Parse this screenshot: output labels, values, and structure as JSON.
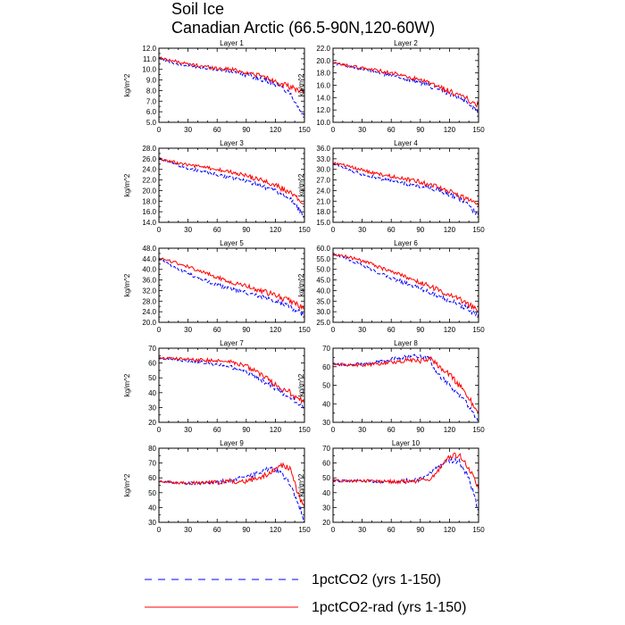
{
  "title": "Soil Ice",
  "subtitle": "Canadian Arctic (66.5-90N,120-60W)",
  "legend": [
    {
      "label": "1pctCO2 (yrs 1-150)",
      "color": "#0000ff",
      "dash": true
    },
    {
      "label": "1pctCO2-rad (yrs 1-150)",
      "color": "#ff0000",
      "dash": false
    }
  ],
  "colors": {
    "series_1pctCO2": "#0000ff",
    "series_1pctCO2_rad": "#ff0000"
  },
  "chart_data": [
    {
      "type": "line",
      "title": "Layer 1",
      "ylabel": "kg/m^2",
      "xlim": [
        0,
        150
      ],
      "ylim": [
        5,
        12
      ],
      "xticks": [
        "0",
        "30",
        "60",
        "90",
        "120",
        "150"
      ],
      "yticks": [
        "5.0",
        "6.0",
        "7.0",
        "8.0",
        "9.0",
        "10.0",
        "11.0",
        "12.0"
      ],
      "series": [
        {
          "name": "1pctCO2 (yrs 1-150)",
          "x": [
            0,
            15,
            30,
            45,
            60,
            75,
            90,
            105,
            120,
            135,
            150
          ],
          "values": [
            11.1,
            10.6,
            10.3,
            10.2,
            10.0,
            9.8,
            9.5,
            9.1,
            8.6,
            7.8,
            5.5
          ]
        },
        {
          "name": "1pctCO2-rad (yrs 1-150)",
          "x": [
            0,
            15,
            30,
            45,
            60,
            75,
            90,
            105,
            120,
            135,
            150
          ],
          "values": [
            11.1,
            10.8,
            10.5,
            10.3,
            10.1,
            10.0,
            9.7,
            9.4,
            8.9,
            8.3,
            7.9
          ]
        }
      ]
    },
    {
      "type": "line",
      "title": "Layer 2",
      "ylabel": "kg/m^2",
      "xlim": [
        0,
        150
      ],
      "ylim": [
        10,
        22
      ],
      "xticks": [
        "0",
        "30",
        "60",
        "90",
        "120",
        "150"
      ],
      "yticks": [
        "10.0",
        "12.0",
        "14.0",
        "16.0",
        "18.0",
        "20.0",
        "22.0"
      ],
      "series": [
        {
          "name": "1pctCO2 (yrs 1-150)",
          "x": [
            0,
            15,
            30,
            45,
            60,
            75,
            90,
            105,
            120,
            135,
            150
          ],
          "values": [
            19.6,
            19.1,
            18.6,
            18.1,
            17.6,
            17.0,
            16.4,
            15.6,
            14.6,
            13.6,
            11.8
          ]
        },
        {
          "name": "1pctCO2-rad (yrs 1-150)",
          "x": [
            0,
            15,
            30,
            45,
            60,
            75,
            90,
            105,
            120,
            135,
            150
          ],
          "values": [
            19.6,
            19.2,
            18.8,
            18.4,
            18.0,
            17.4,
            16.8,
            16.0,
            15.0,
            14.0,
            12.8
          ]
        }
      ]
    },
    {
      "type": "line",
      "title": "Layer 3",
      "ylabel": "kg/m^2",
      "xlim": [
        0,
        150
      ],
      "ylim": [
        14,
        28
      ],
      "xticks": [
        "0",
        "30",
        "60",
        "90",
        "120",
        "150"
      ],
      "yticks": [
        "14.0",
        "16.0",
        "18.0",
        "20.0",
        "22.0",
        "24.0",
        "26.0",
        "28.0"
      ],
      "series": [
        {
          "name": "1pctCO2 (yrs 1-150)",
          "x": [
            0,
            15,
            30,
            45,
            60,
            75,
            90,
            105,
            120,
            135,
            150
          ],
          "values": [
            26.0,
            25.0,
            24.2,
            23.6,
            23.0,
            22.4,
            21.8,
            21.0,
            20.0,
            18.4,
            15.2
          ]
        },
        {
          "name": "1pctCO2-rad (yrs 1-150)",
          "x": [
            0,
            15,
            30,
            45,
            60,
            75,
            90,
            105,
            120,
            135,
            150
          ],
          "values": [
            26.0,
            25.4,
            24.8,
            24.4,
            24.0,
            23.4,
            22.8,
            22.0,
            21.0,
            19.6,
            17.6
          ]
        }
      ]
    },
    {
      "type": "line",
      "title": "Layer 4",
      "ylabel": "kg/m^2",
      "xlim": [
        0,
        150
      ],
      "ylim": [
        15,
        36
      ],
      "xticks": [
        "0",
        "30",
        "60",
        "90",
        "120",
        "150"
      ],
      "yticks": [
        "15.0",
        "18.0",
        "21.0",
        "24.0",
        "27.0",
        "30.0",
        "33.0",
        "36.0"
      ],
      "series": [
        {
          "name": "1pctCO2 (yrs 1-150)",
          "x": [
            0,
            15,
            30,
            45,
            60,
            75,
            90,
            105,
            120,
            135,
            150
          ],
          "values": [
            31.8,
            30.0,
            28.6,
            27.6,
            26.8,
            26.0,
            25.2,
            24.4,
            23.0,
            21.0,
            17.0
          ]
        },
        {
          "name": "1pctCO2-rad (yrs 1-150)",
          "x": [
            0,
            15,
            30,
            45,
            60,
            75,
            90,
            105,
            120,
            135,
            150
          ],
          "values": [
            31.8,
            31.0,
            29.8,
            28.8,
            28.0,
            27.2,
            26.4,
            25.4,
            23.8,
            22.0,
            19.6
          ]
        }
      ]
    },
    {
      "type": "line",
      "title": "Layer 5",
      "ylabel": "kg/m^2",
      "xlim": [
        0,
        150
      ],
      "ylim": [
        20,
        48
      ],
      "xticks": [
        "0",
        "30",
        "60",
        "90",
        "120",
        "150"
      ],
      "yticks": [
        "20.0",
        "24.0",
        "28.0",
        "32.0",
        "36.0",
        "40.0",
        "44.0",
        "48.0"
      ],
      "series": [
        {
          "name": "1pctCO2 (yrs 1-150)",
          "x": [
            0,
            15,
            30,
            45,
            60,
            75,
            90,
            105,
            120,
            135,
            150
          ],
          "values": [
            44.0,
            41.0,
            38.4,
            36.2,
            34.2,
            32.6,
            31.0,
            29.6,
            28.0,
            26.0,
            22.4
          ]
        },
        {
          "name": "1pctCO2-rad (yrs 1-150)",
          "x": [
            0,
            15,
            30,
            45,
            60,
            75,
            90,
            105,
            120,
            135,
            150
          ],
          "values": [
            44.2,
            42.8,
            41.0,
            39.0,
            37.0,
            35.2,
            33.6,
            32.0,
            30.2,
            28.0,
            25.0
          ]
        }
      ]
    },
    {
      "type": "line",
      "title": "Layer 6",
      "ylabel": "kg/m^2",
      "xlim": [
        0,
        150
      ],
      "ylim": [
        25,
        60
      ],
      "xticks": [
        "0",
        "30",
        "60",
        "90",
        "120",
        "150"
      ],
      "yticks": [
        "25.0",
        "30.0",
        "35.0",
        "40.0",
        "45.0",
        "50.0",
        "55.0",
        "60.0"
      ],
      "series": [
        {
          "name": "1pctCO2 (yrs 1-150)",
          "x": [
            0,
            15,
            30,
            45,
            60,
            75,
            90,
            105,
            120,
            135,
            150
          ],
          "values": [
            57.0,
            55.0,
            52.0,
            49.0,
            46.0,
            43.5,
            41.0,
            38.0,
            35.5,
            32.5,
            27.5
          ]
        },
        {
          "name": "1pctCO2-rad (yrs 1-150)",
          "x": [
            0,
            15,
            30,
            45,
            60,
            75,
            90,
            105,
            120,
            135,
            150
          ],
          "values": [
            57.0,
            56.0,
            54.0,
            51.5,
            49.0,
            46.5,
            44.0,
            41.0,
            38.0,
            35.0,
            30.0
          ]
        }
      ]
    },
    {
      "type": "line",
      "title": "Layer 7",
      "ylabel": "kg/m^2",
      "xlim": [
        0,
        150
      ],
      "ylim": [
        20,
        70
      ],
      "xticks": [
        "0",
        "30",
        "60",
        "90",
        "120",
        "150"
      ],
      "yticks": [
        "20",
        "30",
        "40",
        "50",
        "60",
        "70"
      ],
      "series": [
        {
          "name": "1pctCO2 (yrs 1-150)",
          "x": [
            0,
            15,
            30,
            45,
            60,
            75,
            90,
            105,
            120,
            135,
            150
          ],
          "values": [
            63.5,
            62.5,
            61.5,
            60.5,
            59.0,
            57.0,
            54.0,
            49.0,
            43.0,
            37.0,
            30.0
          ]
        },
        {
          "name": "1pctCO2-rad (yrs 1-150)",
          "x": [
            0,
            15,
            30,
            45,
            60,
            75,
            90,
            105,
            120,
            135,
            150
          ],
          "values": [
            63.5,
            63.0,
            62.5,
            62.0,
            61.5,
            61.0,
            58.0,
            52.0,
            45.5,
            40.0,
            33.5
          ]
        }
      ]
    },
    {
      "type": "line",
      "title": "Layer 8",
      "ylabel": "kg/m^2",
      "xlim": [
        0,
        150
      ],
      "ylim": [
        30,
        70
      ],
      "xticks": [
        "0",
        "30",
        "60",
        "90",
        "120",
        "150"
      ],
      "yticks": [
        "30",
        "40",
        "50",
        "60",
        "70"
      ],
      "series": [
        {
          "name": "1pctCO2 (yrs 1-150)",
          "x": [
            0,
            15,
            30,
            45,
            60,
            75,
            90,
            100,
            105,
            120,
            135,
            150
          ],
          "values": [
            61.5,
            61.0,
            61.5,
            62.5,
            64.0,
            65.5,
            66.0,
            64.0,
            58.0,
            50.0,
            42.0,
            31.0
          ]
        },
        {
          "name": "1pctCO2-rad (yrs 1-150)",
          "x": [
            0,
            15,
            30,
            45,
            60,
            75,
            90,
            100,
            105,
            120,
            135,
            150
          ],
          "values": [
            61.5,
            61.0,
            61.0,
            61.5,
            62.5,
            63.5,
            63.0,
            64.5,
            62.0,
            56.0,
            47.0,
            35.0
          ]
        }
      ]
    },
    {
      "type": "line",
      "title": "Layer 9",
      "ylabel": "kg/m^2",
      "xlim": [
        0,
        150
      ],
      "ylim": [
        30,
        80
      ],
      "xticks": [
        "0",
        "30",
        "60",
        "90",
        "120",
        "150"
      ],
      "yticks": [
        "30",
        "40",
        "50",
        "60",
        "70",
        "80"
      ],
      "series": [
        {
          "name": "1pctCO2 (yrs 1-150)",
          "x": [
            0,
            15,
            30,
            45,
            60,
            75,
            90,
            105,
            115,
            125,
            135,
            145,
            150
          ],
          "values": [
            57.5,
            57.0,
            56.5,
            56.5,
            57.0,
            58.5,
            60.5,
            64.0,
            66.5,
            64.0,
            56.0,
            40.0,
            30.0
          ]
        },
        {
          "name": "1pctCO2-rad (yrs 1-150)",
          "x": [
            0,
            15,
            30,
            45,
            60,
            75,
            90,
            105,
            115,
            125,
            135,
            145,
            150
          ],
          "values": [
            57.5,
            57.0,
            56.5,
            56.5,
            57.0,
            57.5,
            57.5,
            60.0,
            64.0,
            69.0,
            66.0,
            46.0,
            40.0
          ]
        }
      ]
    },
    {
      "type": "line",
      "title": "Layer 10",
      "ylabel": "kg/m^2",
      "xlim": [
        0,
        150
      ],
      "ylim": [
        20,
        70
      ],
      "xticks": [
        "0",
        "30",
        "60",
        "90",
        "120",
        "150"
      ],
      "yticks": [
        "20",
        "30",
        "40",
        "50",
        "60",
        "70"
      ],
      "series": [
        {
          "name": "1pctCO2 (yrs 1-150)",
          "x": [
            0,
            15,
            30,
            45,
            60,
            75,
            90,
            100,
            110,
            120,
            130,
            140,
            150
          ],
          "values": [
            48.0,
            48.0,
            48.0,
            47.5,
            47.5,
            48.0,
            49.0,
            53.0,
            58.0,
            62.0,
            61.0,
            50.0,
            28.0
          ]
        },
        {
          "name": "1pctCO2-rad (yrs 1-150)",
          "x": [
            0,
            15,
            30,
            45,
            60,
            75,
            90,
            100,
            110,
            120,
            130,
            140,
            150
          ],
          "values": [
            48.0,
            48.0,
            48.0,
            47.5,
            47.5,
            47.5,
            48.0,
            49.5,
            56.0,
            64.5,
            65.5,
            57.0,
            42.0
          ]
        }
      ]
    }
  ]
}
